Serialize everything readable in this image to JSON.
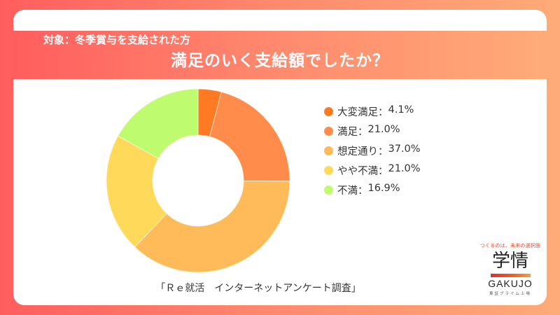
{
  "header": {
    "subtitle": "対象：冬季賞与を支給された方",
    "title": "満足のいく支給額でしたか？"
  },
  "chart_data": {
    "type": "pie",
    "variant": "donut",
    "title": "満足のいく支給額でしたか？",
    "subtitle": "対象：冬季賞与を支給された方",
    "categories": [
      "大変満足",
      "満足",
      "想定通り",
      "やや不満",
      "不満"
    ],
    "values": [
      4.1,
      21.0,
      37.0,
      21.0,
      16.9
    ],
    "unit": "%",
    "colors": [
      "#FF7A22",
      "#FF8C4B",
      "#FFBB5A",
      "#FFDA5A",
      "#BEFB6E"
    ],
    "start_angle": "12 o'clock, clockwise",
    "legend_position": "right",
    "source": "「Ｒｅ就活　インターネットアンケート調査」"
  },
  "legend": {
    "items": [
      {
        "label": "大変満足",
        "separator": "：",
        "value": "4.1%",
        "color": "#FF7A22"
      },
      {
        "label": "満足",
        "separator": "：",
        "value": "21.0%",
        "color": "#FF8C4B"
      },
      {
        "label": "想定通り",
        "separator": "：",
        "value": "37.0%",
        "color": "#FFBB5A"
      },
      {
        "label": "やや不満",
        "separator": "：",
        "value": "21.0%",
        "color": "#FFDA5A"
      },
      {
        "label": "不満",
        "separator": "：",
        "value": "16.9%",
        "color": "#BEFB6E"
      }
    ]
  },
  "source": {
    "text": "「Ｒｅ就活　インターネットアンケート調査」"
  },
  "logo": {
    "tagline": "つくるのは、未来の選択肢",
    "kanji": "学情",
    "name": "GAKUJO",
    "sub": "東証プライム上場"
  },
  "colors": {
    "background_gradient_start": "#FF5E5E",
    "background_gradient_end": "#FFAB78",
    "card": "#FFFFFF",
    "text": "#333333"
  }
}
